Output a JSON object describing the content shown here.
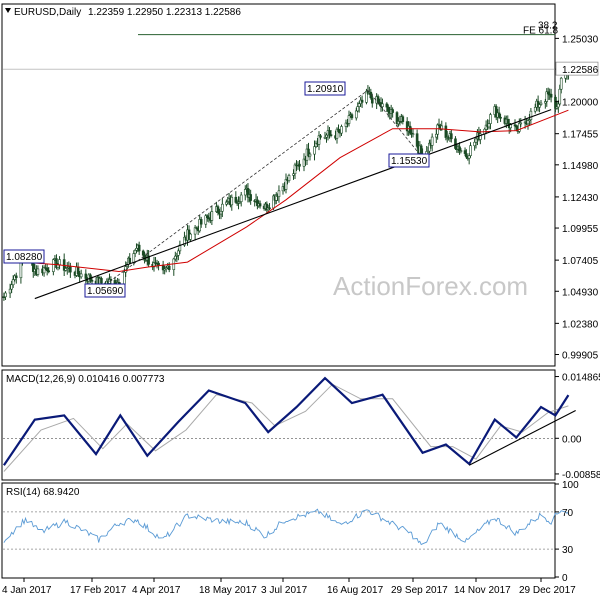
{
  "header": {
    "symbol": "EURUSD,Daily",
    "ohlc": "1.22359 1.22950 1.22313 1.22586",
    "marker_icon": "triangle-down-icon"
  },
  "watermark": "ActionForex.com",
  "colors": {
    "candle": "#1a4a24",
    "ma": "#d00000",
    "macd": "#0a1a78",
    "signal": "#aaaaaa",
    "rsi": "#5b9bd5",
    "trend": "#000000",
    "fib": "#2a6030",
    "label_border": "#1a1a99",
    "current_price_line": "#888888"
  },
  "chart_data": [
    {
      "type": "candlestick",
      "symbol": "EURUSD,Daily",
      "ylim": [
        0.9899,
        1.2665
      ],
      "y_ticks": [
        "1.25030",
        "1.22586",
        "1.20000",
        "1.17455",
        "1.14980",
        "1.12430",
        "1.09955",
        "1.07405",
        "1.04930",
        "1.02380",
        "0.99905"
      ],
      "y_tick_values": [
        1.2503,
        1.22586,
        1.2,
        1.17455,
        1.1498,
        1.1243,
        1.09955,
        1.07405,
        1.0493,
        1.0238,
        0.99905
      ],
      "x_ticks": [
        "4 Jan 2017",
        "17 Feb 2017",
        "4 Apr 2017",
        "18 May 2017",
        "3 Jul 2017",
        "16 Aug 2017",
        "29 Sep 2017",
        "14 Nov 2017",
        "29 Dec 2017"
      ],
      "current_price": 1.22586,
      "current_price_label": "1.22586",
      "fib": {
        "level": 1.2533,
        "label_top": "38.2",
        "label_main": "FE 61.8"
      },
      "annotations": [
        {
          "label": "1.08280",
          "value": 1.0828,
          "date": "2017-01-02"
        },
        {
          "label": "1.05690",
          "value": 1.0569,
          "date": "2017-03-02"
        },
        {
          "label": "1.20910",
          "value": 1.2091,
          "date": "2017-08-29"
        },
        {
          "label": "1.15530",
          "value": 1.1553,
          "date": "2017-10-06"
        }
      ],
      "trendline": [
        {
          "date": "2017-01-11",
          "value": 1.0435
        },
        {
          "date": "2018-01-05",
          "value": 1.1937
        }
      ],
      "key_points": [
        {
          "date": "2016-12-22",
          "value": 1.045
        },
        {
          "date": "2017-01-05",
          "value": 1.078
        },
        {
          "date": "2017-01-12",
          "value": 1.065
        },
        {
          "date": "2017-01-25",
          "value": 1.0715
        },
        {
          "date": "2017-02-22",
          "value": 1.056
        },
        {
          "date": "2017-03-09",
          "value": 1.0569
        },
        {
          "date": "2017-03-22",
          "value": 1.084
        },
        {
          "date": "2017-04-10",
          "value": 1.063
        },
        {
          "date": "2017-04-26",
          "value": 1.094
        },
        {
          "date": "2017-05-18",
          "value": 1.116
        },
        {
          "date": "2017-06-06",
          "value": 1.128
        },
        {
          "date": "2017-06-20",
          "value": 1.116
        },
        {
          "date": "2017-07-05",
          "value": 1.136
        },
        {
          "date": "2017-07-27",
          "value": 1.172
        },
        {
          "date": "2017-08-10",
          "value": 1.175
        },
        {
          "date": "2017-08-29",
          "value": 1.2055
        },
        {
          "date": "2017-09-08",
          "value": 1.196
        },
        {
          "date": "2017-09-28",
          "value": 1.177
        },
        {
          "date": "2017-10-06",
          "value": 1.1553
        },
        {
          "date": "2017-10-18",
          "value": 1.18
        },
        {
          "date": "2017-11-07",
          "value": 1.1575
        },
        {
          "date": "2017-11-27",
          "value": 1.193
        },
        {
          "date": "2017-12-12",
          "value": 1.176
        },
        {
          "date": "2017-12-29",
          "value": 1.2005
        },
        {
          "date": "2018-01-03",
          "value": 1.205
        },
        {
          "date": "2018-01-09",
          "value": 1.195
        },
        {
          "date": "2018-01-12",
          "value": 1.2145
        },
        {
          "date": "2018-01-17",
          "value": 1.226
        }
      ],
      "ma_points": [
        {
          "date": "2016-12-22",
          "value": 1.0735
        },
        {
          "date": "2017-01-25",
          "value": 1.0705
        },
        {
          "date": "2017-03-09",
          "value": 1.065
        },
        {
          "date": "2017-03-30",
          "value": 1.0685
        },
        {
          "date": "2017-04-26",
          "value": 1.0725
        },
        {
          "date": "2017-06-06",
          "value": 1.1005
        },
        {
          "date": "2017-07-05",
          "value": 1.122
        },
        {
          "date": "2017-08-10",
          "value": 1.1555
        },
        {
          "date": "2017-09-15",
          "value": 1.1785
        },
        {
          "date": "2017-10-18",
          "value": 1.1785
        },
        {
          "date": "2017-11-17",
          "value": 1.176
        },
        {
          "date": "2017-12-12",
          "value": 1.177
        },
        {
          "date": "2018-01-17",
          "value": 1.1932
        }
      ]
    },
    {
      "type": "line",
      "title": "MACD(12,26,9) 0.010416 0.007773",
      "ylim": [
        -0.0098,
        0.0162
      ],
      "y_ticks": [
        "0.014865",
        "0.00",
        "-0.008581"
      ],
      "y_tick_values": [
        0.014865,
        0.0,
        -0.008581
      ],
      "series": [
        {
          "name": "MACD",
          "points": [
            {
              "date": "2016-12-22",
              "value": -0.0065
            },
            {
              "date": "2017-01-11",
              "value": 0.0045
            },
            {
              "date": "2017-01-30",
              "value": 0.0055
            },
            {
              "date": "2017-02-20",
              "value": -0.0038
            },
            {
              "date": "2017-03-10",
              "value": 0.0055
            },
            {
              "date": "2017-03-30",
              "value": -0.0042
            },
            {
              "date": "2017-04-20",
              "value": 0.004
            },
            {
              "date": "2017-05-10",
              "value": 0.0115
            },
            {
              "date": "2017-06-05",
              "value": 0.0085
            },
            {
              "date": "2017-06-22",
              "value": 0.0015
            },
            {
              "date": "2017-07-12",
              "value": 0.0075
            },
            {
              "date": "2017-07-31",
              "value": 0.0145
            },
            {
              "date": "2017-08-18",
              "value": 0.0085
            },
            {
              "date": "2017-09-08",
              "value": 0.0105
            },
            {
              "date": "2017-10-06",
              "value": -0.0035
            },
            {
              "date": "2017-10-23",
              "value": -0.0015
            },
            {
              "date": "2017-11-09",
              "value": -0.0062
            },
            {
              "date": "2017-11-27",
              "value": 0.0045
            },
            {
              "date": "2017-12-12",
              "value": 0.0002
            },
            {
              "date": "2017-12-29",
              "value": 0.0075
            },
            {
              "date": "2018-01-08",
              "value": 0.0055
            },
            {
              "date": "2018-01-17",
              "value": 0.0104
            }
          ]
        },
        {
          "name": "Signal",
          "points": [
            {
              "date": "2016-12-22",
              "value": -0.008
            },
            {
              "date": "2017-01-15",
              "value": 0.002
            },
            {
              "date": "2017-02-05",
              "value": 0.0048
            },
            {
              "date": "2017-02-25",
              "value": -0.0025
            },
            {
              "date": "2017-03-15",
              "value": 0.0035
            },
            {
              "date": "2017-04-05",
              "value": -0.003
            },
            {
              "date": "2017-04-25",
              "value": 0.002
            },
            {
              "date": "2017-05-15",
              "value": 0.0105
            },
            {
              "date": "2017-06-10",
              "value": 0.0085
            },
            {
              "date": "2017-06-27",
              "value": 0.003
            },
            {
              "date": "2017-07-18",
              "value": 0.0065
            },
            {
              "date": "2017-08-05",
              "value": 0.013
            },
            {
              "date": "2017-08-24",
              "value": 0.0095
            },
            {
              "date": "2017-09-15",
              "value": 0.0095
            },
            {
              "date": "2017-10-12",
              "value": -0.002
            },
            {
              "date": "2017-10-28",
              "value": -0.002
            },
            {
              "date": "2017-11-14",
              "value": -0.005
            },
            {
              "date": "2017-12-01",
              "value": 0.003
            },
            {
              "date": "2017-12-16",
              "value": 0.0015
            },
            {
              "date": "2018-01-03",
              "value": 0.0062
            },
            {
              "date": "2018-01-17",
              "value": 0.0078
            }
          ]
        }
      ],
      "trendline": [
        {
          "date": "2017-11-09",
          "value": -0.0065
        },
        {
          "date": "2018-01-22",
          "value": 0.0067
        }
      ]
    },
    {
      "type": "line",
      "title": "RSI(14) 68.9420",
      "ylim": [
        0,
        100
      ],
      "y_ticks": [
        "100",
        "70",
        "30",
        "0"
      ],
      "y_tick_values": [
        100,
        70,
        30,
        0
      ],
      "levels": [
        70,
        30
      ],
      "series": [
        {
          "name": "RSI",
          "points": [
            {
              "date": "2016-12-22",
              "value": 40
            },
            {
              "date": "2017-01-05",
              "value": 62
            },
            {
              "date": "2017-01-15",
              "value": 48
            },
            {
              "date": "2017-01-31",
              "value": 60
            },
            {
              "date": "2017-02-22",
              "value": 40
            },
            {
              "date": "2017-03-09",
              "value": 58
            },
            {
              "date": "2017-03-22",
              "value": 62
            },
            {
              "date": "2017-04-10",
              "value": 40
            },
            {
              "date": "2017-04-26",
              "value": 66
            },
            {
              "date": "2017-05-18",
              "value": 60
            },
            {
              "date": "2017-06-06",
              "value": 58
            },
            {
              "date": "2017-06-20",
              "value": 44
            },
            {
              "date": "2017-07-05",
              "value": 62
            },
            {
              "date": "2017-07-27",
              "value": 70
            },
            {
              "date": "2017-08-10",
              "value": 56
            },
            {
              "date": "2017-08-29",
              "value": 72
            },
            {
              "date": "2017-09-08",
              "value": 63
            },
            {
              "date": "2017-09-28",
              "value": 46
            },
            {
              "date": "2017-10-06",
              "value": 33
            },
            {
              "date": "2017-10-18",
              "value": 58
            },
            {
              "date": "2017-11-07",
              "value": 38
            },
            {
              "date": "2017-11-27",
              "value": 64
            },
            {
              "date": "2017-12-12",
              "value": 47
            },
            {
              "date": "2017-12-29",
              "value": 67
            },
            {
              "date": "2018-01-05",
              "value": 60
            },
            {
              "date": "2018-01-12",
              "value": 73
            },
            {
              "date": "2018-01-17",
              "value": 69
            }
          ]
        }
      ]
    }
  ]
}
